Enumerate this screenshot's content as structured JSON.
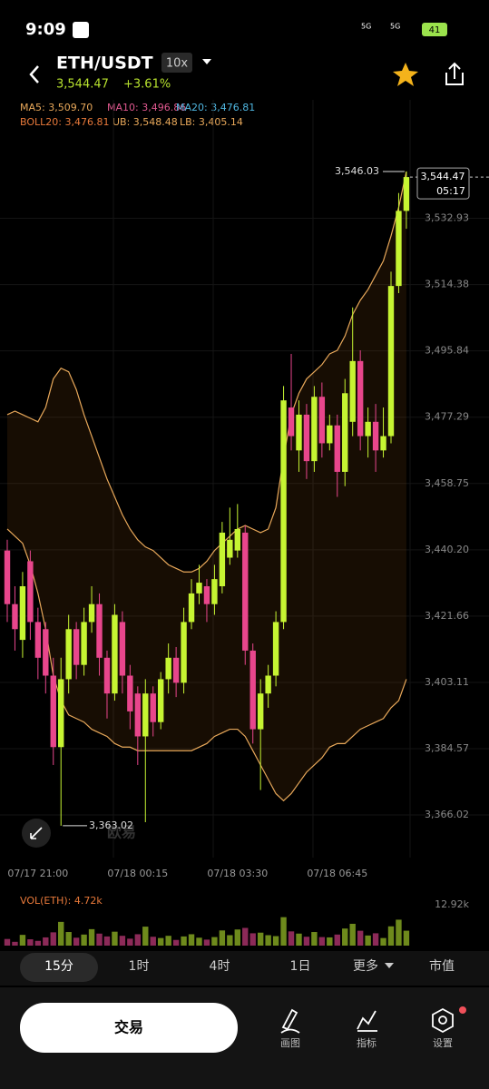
{
  "status_bar": {
    "time": "9:09",
    "network_1": "5G",
    "network_2": "5G",
    "battery": "41"
  },
  "header": {
    "pair": "ETH/USDT",
    "leverage": "10x",
    "price": "3,544.47",
    "change": "+3.61%"
  },
  "indicators": [
    {
      "text": "MA5: 3,509.70",
      "color": "#e8a85a"
    },
    {
      "text": "MA10: 3,496.86",
      "color": "#e0588f"
    },
    {
      "text": "MA20: 3,476.81",
      "color": "#4fb6e0"
    },
    {
      "text": "BOLL20: 3,476.81",
      "color": "#e8793a"
    },
    {
      "text": "UB: 3,548.48",
      "color": "#e8a85a"
    },
    {
      "text": "LB: 3,405.14",
      "color": "#e8a85a"
    }
  ],
  "chart_data": [
    {
      "type": "candlestick",
      "categories": [
        null,
        null,
        null,
        null,
        "07/17 21:00",
        null,
        null,
        null,
        null,
        null,
        null,
        null,
        null,
        null,
        null,
        null,
        null,
        "07/18 00:15",
        null,
        null,
        null,
        null,
        null,
        null,
        null,
        null,
        null,
        null,
        null,
        null,
        "07/18 03:30",
        null,
        null,
        null,
        null,
        null,
        null,
        null,
        null,
        null,
        null,
        null,
        null,
        "07/18 06:45",
        null,
        null,
        null,
        null,
        null,
        null,
        null,
        null,
        null
      ],
      "open": [
        3440,
        3425,
        3415,
        3437,
        3420,
        3418,
        3405,
        3385,
        3404,
        3418,
        3408,
        3420,
        3425,
        3410,
        3400,
        3420,
        3405,
        3400,
        3388,
        3400,
        3392,
        3404,
        3410,
        3403,
        3420,
        3428,
        3430,
        3425,
        3430,
        3438,
        3440,
        3445,
        3412,
        3390,
        3400,
        3405,
        3420,
        3480,
        3468,
        3478,
        3465,
        3483,
        3470,
        3475,
        3462,
        3476,
        3493,
        3472,
        3476,
        3468,
        3472,
        3514,
        3535
      ],
      "high": [
        3443,
        3430,
        3434,
        3440,
        3424,
        3420,
        3410,
        3410,
        3422,
        3420,
        3424,
        3430,
        3428,
        3412,
        3425,
        3423,
        3408,
        3402,
        3404,
        3402,
        3406,
        3414,
        3413,
        3424,
        3432,
        3436,
        3432,
        3436,
        3448,
        3452,
        3453,
        3447,
        3414,
        3404,
        3408,
        3423,
        3486,
        3495,
        3482,
        3481,
        3486,
        3487,
        3478,
        3478,
        3488,
        3508,
        3496,
        3480,
        3481,
        3480,
        3518,
        3540,
        3546.03
      ],
      "low": [
        3420,
        3412,
        3410,
        3415,
        3404,
        3400,
        3380,
        3363.02,
        3400,
        3404,
        3405,
        3417,
        3405,
        3393,
        3398,
        3400,
        3390,
        3380,
        3364,
        3388,
        3390,
        3400,
        3399,
        3400,
        3418,
        3425,
        3420,
        3422,
        3428,
        3436,
        3438,
        3408,
        3386,
        3373,
        3396,
        3402,
        3418,
        3468,
        3462,
        3460,
        3462,
        3466,
        3468,
        3455,
        3458,
        3472,
        3468,
        3466,
        3462,
        3466,
        3470,
        3512,
        3530
      ],
      "close": [
        3425,
        3418,
        3430,
        3420,
        3410,
        3405,
        3385,
        3404,
        3418,
        3408,
        3420,
        3425,
        3410,
        3400,
        3422,
        3405,
        3395,
        3388,
        3400,
        3392,
        3404,
        3410,
        3403,
        3420,
        3428,
        3431,
        3425,
        3432,
        3445,
        3443,
        3446,
        3412,
        3390,
        3400,
        3405,
        3420,
        3482,
        3472,
        3478,
        3465,
        3483,
        3470,
        3475,
        3462,
        3484,
        3493,
        3472,
        3476,
        3468,
        3472,
        3514,
        3535,
        3544.47
      ],
      "up_color": "#c6f432",
      "down_color": "#e8468c",
      "series": [
        {
          "name": "UB",
          "color": "#e8a85a",
          "values": [
            3478,
            3479,
            3478,
            3477,
            3476,
            3480,
            3488,
            3491,
            3490,
            3485,
            3478,
            3472,
            3466,
            3460,
            3455,
            3450,
            3446,
            3443,
            3441,
            3440,
            3438,
            3436,
            3435,
            3434,
            3434,
            3435,
            3437,
            3440,
            3442,
            3444,
            3446,
            3447,
            3446,
            3445,
            3446,
            3452,
            3466,
            3478,
            3484,
            3488,
            3490,
            3492,
            3495,
            3496,
            3500,
            3506,
            3510,
            3513,
            3517,
            3521,
            3528,
            3536,
            3546
          ]
        },
        {
          "name": "LB",
          "color": "#e8a85a",
          "values": [
            3446,
            3444,
            3442,
            3436,
            3428,
            3418,
            3405,
            3398,
            3394,
            3393,
            3392,
            3390,
            3389,
            3388,
            3386,
            3385,
            3385,
            3384,
            3384,
            3384,
            3384,
            3384,
            3384,
            3384,
            3384,
            3385,
            3386,
            3388,
            3389,
            3390,
            3390,
            3388,
            3384,
            3380,
            3376,
            3372,
            3370,
            3372,
            3375,
            3378,
            3380,
            3382,
            3385,
            3386,
            3386,
            3388,
            3390,
            3391,
            3392,
            3393,
            3396,
            3398,
            3404
          ]
        }
      ],
      "ylim": [
        3354.1,
        3548.3
      ],
      "yticks": [
        {
          "value": 3366.02,
          "label": "3,366.02"
        },
        {
          "value": 3384.57,
          "label": "3,384.57"
        },
        {
          "value": 3403.11,
          "label": "3,403.11"
        },
        {
          "value": 3421.66,
          "label": "3,421.66"
        },
        {
          "value": 3440.2,
          "label": "3,440.20"
        },
        {
          "value": 3458.75,
          "label": "3,458.75"
        },
        {
          "value": 3477.29,
          "label": "3,477.29"
        },
        {
          "value": 3495.84,
          "label": "3,495.84"
        },
        {
          "value": 3514.38,
          "label": "3,514.38"
        },
        {
          "value": 3532.93,
          "label": "3,532.93"
        }
      ],
      "max_label": "3,546.03",
      "min_label": "3,363.02",
      "last_label": "3,544.47",
      "countdown": "05:17",
      "watermark": "欧易",
      "grid": true
    },
    {
      "type": "bar",
      "title": "VOL(ETH): 4.72k",
      "values": [
        2100,
        1200,
        3400,
        2000,
        1500,
        2600,
        4200,
        7500,
        4300,
        2500,
        3500,
        5200,
        3800,
        2900,
        4400,
        3100,
        2200,
        3600,
        6000,
        2800,
        2400,
        3100,
        1800,
        2900,
        3600,
        2500,
        1900,
        2700,
        4800,
        3300,
        5100,
        5600,
        3900,
        4100,
        3300,
        3000,
        9000,
        4500,
        3800,
        2800,
        4300,
        2700,
        2600,
        3500,
        5400,
        6900,
        4700,
        3200,
        3900,
        2400,
        6100,
        8200,
        4720
      ],
      "up_color": "#6e8a1c",
      "down_color": "#8c2a58",
      "ylim": [
        0,
        12920
      ],
      "yticks": [
        {
          "value": 12920,
          "label": "12.92k"
        }
      ]
    }
  ],
  "tabs": [
    "15分",
    "1时",
    "4时",
    "1日",
    "更多",
    "市值"
  ],
  "bottom": {
    "trade": "交易",
    "draw": "画图",
    "indicators": "指标",
    "settings": "设置"
  }
}
